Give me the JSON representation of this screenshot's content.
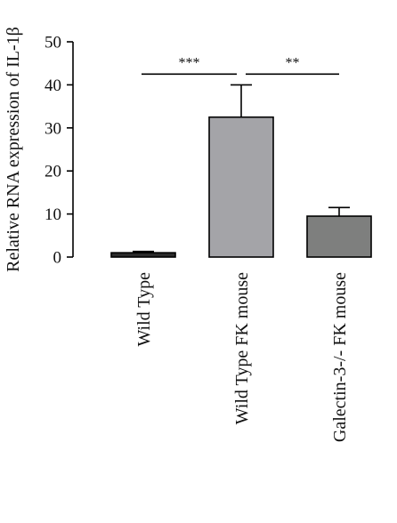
{
  "chart_data": {
    "type": "bar",
    "title": "",
    "xlabel": "",
    "ylabel": "Relative RNA expression of IL-1β",
    "ylim": [
      0,
      50
    ],
    "yticks": [
      0,
      10,
      20,
      30,
      40,
      50
    ],
    "categories": [
      "Wild Type",
      "Wild Type FK mouse",
      "Galectin-3-/- FK mouse"
    ],
    "values": [
      1,
      32.5,
      9.5
    ],
    "error_upper": [
      1.3,
      40,
      11.5
    ],
    "bar_colors": [
      "#2b2b2b",
      "#a4a4a8",
      "#7e7f7e"
    ],
    "significance": [
      {
        "from": 0,
        "to": 1,
        "label": "***",
        "y": 42.5
      },
      {
        "from": 1,
        "to": 2,
        "label": "**",
        "y": 42.5
      }
    ],
    "grid": false,
    "legend": "none"
  }
}
